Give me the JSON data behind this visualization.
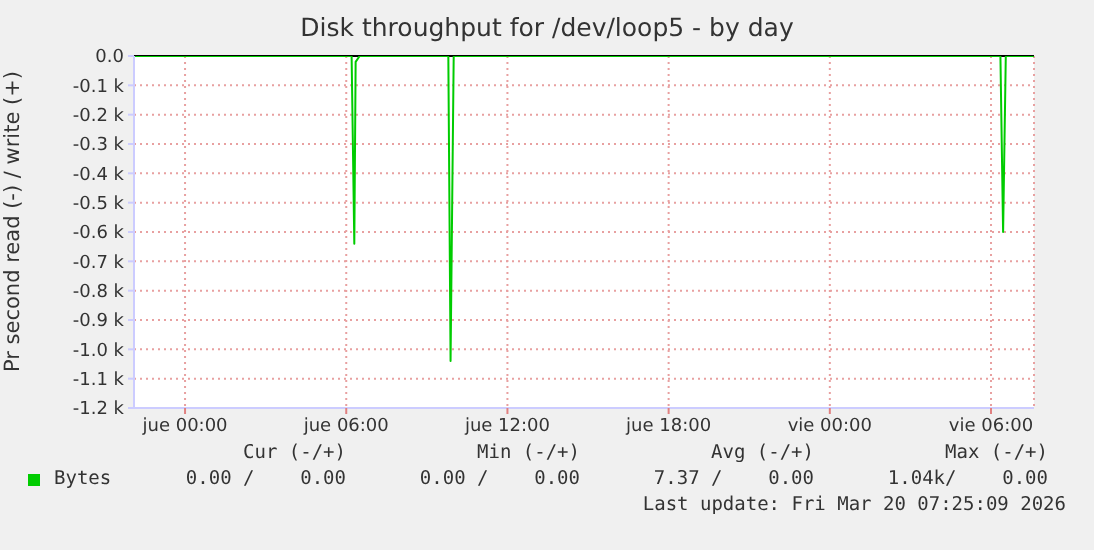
{
  "chart_data": {
    "type": "line",
    "title": "Disk throughput for /dev/loop5 - by day",
    "ylabel": "Pr second read (-) / write (+)",
    "x": [
      "2026-03-18T22:06",
      "2026-03-19T06:12",
      "2026-03-19T06:18",
      "2026-03-19T06:21",
      "2026-03-19T06:30",
      "2026-03-19T09:48",
      "2026-03-19T09:53",
      "2026-03-19T10:00",
      "2026-03-20T06:21",
      "2026-03-20T06:27",
      "2026-03-20T06:33",
      "2026-03-20T07:36"
    ],
    "series": [
      {
        "name": "Bytes",
        "color": "#00cc00",
        "values": [
          0,
          0,
          -0.64,
          -0.02,
          0,
          0,
          -1.04,
          0,
          0,
          -0.6,
          0,
          0
        ]
      }
    ],
    "xlim": [
      "2026-03-18T22:06",
      "2026-03-20T07:36"
    ],
    "xticks": [
      {
        "value": "2026-03-19T00:00",
        "label": "jue 00:00"
      },
      {
        "value": "2026-03-19T06:00",
        "label": "jue 06:00"
      },
      {
        "value": "2026-03-19T12:00",
        "label": "jue 12:00"
      },
      {
        "value": "2026-03-19T18:00",
        "label": "jue 18:00"
      },
      {
        "value": "2026-03-20T00:00",
        "label": "vie 00:00"
      },
      {
        "value": "2026-03-20T06:00",
        "label": "vie 06:00"
      }
    ],
    "ylim": [
      -1.2,
      0
    ],
    "yticks": [
      {
        "value": -1.2,
        "label": "-1.2 k"
      },
      {
        "value": -1.1,
        "label": "-1.1 k"
      },
      {
        "value": -1.0,
        "label": "-1.0 k"
      },
      {
        "value": -0.9,
        "label": "-0.9 k"
      },
      {
        "value": -0.8,
        "label": "-0.8 k"
      },
      {
        "value": -0.7,
        "label": "-0.7 k"
      },
      {
        "value": -0.6,
        "label": "-0.6 k"
      },
      {
        "value": -0.5,
        "label": "-0.5 k"
      },
      {
        "value": -0.4,
        "label": "-0.4 k"
      },
      {
        "value": -0.3,
        "label": "-0.3 k"
      },
      {
        "value": -0.2,
        "label": "-0.2 k"
      },
      {
        "value": -0.1,
        "label": "-0.1 k"
      },
      {
        "value": 0,
        "label": "0.0"
      }
    ],
    "ref_lines": [
      {
        "axis": "y",
        "value": 0,
        "color": "#000000"
      }
    ],
    "grid": true,
    "legend": "bottom",
    "marker": "none",
    "line_style": "solid",
    "annotations": [
      "Cur (-/+)",
      "Min (-/+)",
      "Avg (-/+)",
      "Max (-/+)",
      "0.00 /    0.00",
      "0.00 /    0.00",
      "7.37 /    0.00",
      "1.04k/    0.00",
      "Last update: Fri Mar 20 07:25:09 2026"
    ]
  }
}
